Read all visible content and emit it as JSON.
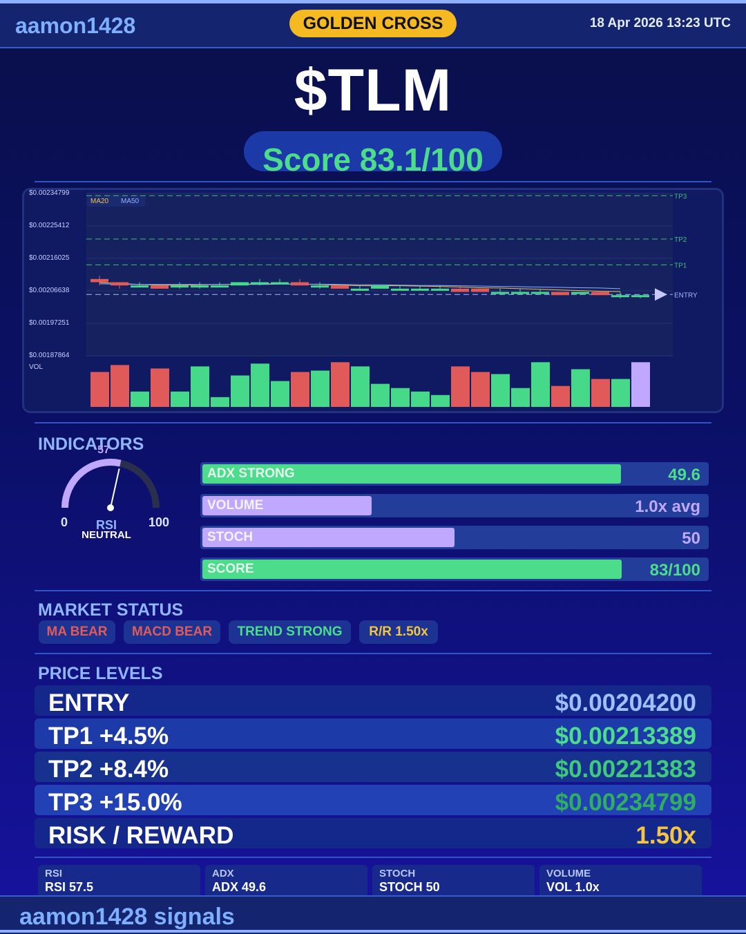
{
  "header": {
    "brand": "aamon1428",
    "signal_badge": "GOLDEN CROSS",
    "datetime": "18 Apr 2026  13:23 UTC"
  },
  "ticker": "$TLM",
  "score_text": "Score 83.1/100",
  "chart_data": {
    "type": "candlestick",
    "y_tick_labels": [
      "$0.00234799",
      "$0.00225412",
      "$0.00216025",
      "$0.00206638",
      "$0.00197251",
      "$0.00187864"
    ],
    "ylim": [
      0.00185,
      0.002355
    ],
    "legend": [
      "MA20",
      "MA50"
    ],
    "volume_label": "VOL",
    "candles": [
      {
        "o": 0.00209,
        "c": 0.00208,
        "h": 0.0021,
        "l": 0.00207,
        "v": 0.5
      },
      {
        "o": 0.00208,
        "c": 0.00207,
        "h": 0.00208,
        "l": 0.00206,
        "v": 0.6
      },
      {
        "o": 0.00207,
        "c": 0.00207,
        "h": 0.00208,
        "l": 0.00207,
        "v": 0.22
      },
      {
        "o": 0.00207,
        "c": 0.00206,
        "h": 0.00207,
        "l": 0.00206,
        "v": 0.55
      },
      {
        "o": 0.00207,
        "c": 0.00207,
        "h": 0.00208,
        "l": 0.00206,
        "v": 0.22
      },
      {
        "o": 0.00207,
        "c": 0.00207,
        "h": 0.00208,
        "l": 0.00206,
        "v": 0.58
      },
      {
        "o": 0.00207,
        "c": 0.00207,
        "h": 0.00208,
        "l": 0.00207,
        "v": 0.14
      },
      {
        "o": 0.00207,
        "c": 0.00208,
        "h": 0.00208,
        "l": 0.00207,
        "v": 0.45
      },
      {
        "o": 0.00208,
        "c": 0.00208,
        "h": 0.00209,
        "l": 0.00207,
        "v": 0.62
      },
      {
        "o": 0.00208,
        "c": 0.00208,
        "h": 0.00209,
        "l": 0.00208,
        "v": 0.37
      },
      {
        "o": 0.00208,
        "c": 0.00207,
        "h": 0.00209,
        "l": 0.00207,
        "v": 0.5
      },
      {
        "o": 0.00207,
        "c": 0.00207,
        "h": 0.00208,
        "l": 0.00206,
        "v": 0.52
      },
      {
        "o": 0.00207,
        "c": 0.00206,
        "h": 0.00207,
        "l": 0.00206,
        "v": 0.64
      },
      {
        "o": 0.00206,
        "c": 0.00206,
        "h": 0.00207,
        "l": 0.00206,
        "v": 0.58
      },
      {
        "o": 0.00206,
        "c": 0.00207,
        "h": 0.00207,
        "l": 0.00206,
        "v": 0.33
      },
      {
        "o": 0.00206,
        "c": 0.00206,
        "h": 0.00207,
        "l": 0.00206,
        "v": 0.27
      },
      {
        "o": 0.00206,
        "c": 0.00206,
        "h": 0.00207,
        "l": 0.00206,
        "v": 0.22
      },
      {
        "o": 0.00206,
        "c": 0.00206,
        "h": 0.00207,
        "l": 0.00206,
        "v": 0.17
      },
      {
        "o": 0.00206,
        "c": 0.00205,
        "h": 0.00207,
        "l": 0.00205,
        "v": 0.58
      },
      {
        "o": 0.00206,
        "c": 0.00205,
        "h": 0.00206,
        "l": 0.00205,
        "v": 0.5
      },
      {
        "o": 0.00205,
        "c": 0.00205,
        "h": 0.00206,
        "l": 0.00205,
        "v": 0.47
      },
      {
        "o": 0.00205,
        "c": 0.00205,
        "h": 0.00206,
        "l": 0.00205,
        "v": 0.27
      },
      {
        "o": 0.00205,
        "c": 0.00205,
        "h": 0.00206,
        "l": 0.00205,
        "v": 0.64
      },
      {
        "o": 0.00205,
        "c": 0.00204,
        "h": 0.00205,
        "l": 0.00204,
        "v": 0.3
      },
      {
        "o": 0.00205,
        "c": 0.00205,
        "h": 0.00205,
        "l": 0.00204,
        "v": 0.54
      },
      {
        "o": 0.00205,
        "c": 0.00204,
        "h": 0.00205,
        "l": 0.00204,
        "v": 0.4
      },
      {
        "o": 0.00204,
        "c": 0.00204,
        "h": 0.00205,
        "l": 0.00203,
        "v": 0.4
      },
      {
        "o": 0.00204,
        "c": 0.00204,
        "h": 0.00204,
        "l": 0.00203,
        "v": 0.64
      }
    ],
    "ma20": [
      0.002079,
      0.002076,
      0.002073,
      0.002071,
      0.002071,
      0.002072,
      0.002073,
      0.002074,
      0.002075,
      0.002075,
      0.002074,
      0.002073,
      0.002071,
      0.002069,
      0.002069,
      0.002069,
      0.002068,
      0.002067,
      0.002065,
      0.002063,
      0.002062,
      0.00206,
      0.002058,
      0.002056,
      0.002054,
      0.002052,
      0.002051
    ],
    "ma50": [
      0.002075,
      0.002074,
      0.002073,
      0.002073,
      0.002073,
      0.002073,
      0.002073,
      0.002073,
      0.002073,
      0.002074,
      0.002074,
      0.002074,
      0.002073,
      0.002072,
      0.002072,
      0.002071,
      0.00207,
      0.00207,
      0.002069,
      0.002068,
      0.002067,
      0.002066,
      0.002065,
      0.002064,
      0.002063,
      0.002062,
      0.00206
    ],
    "levels": [
      {
        "name": "TP3",
        "value": 0.00234799,
        "color": "#3fbf72"
      },
      {
        "name": "TP2",
        "value": 0.00221383,
        "color": "#3fbf72"
      },
      {
        "name": "TP1",
        "value": 0.00213389,
        "color": "#3fbf72"
      },
      {
        "name": "ENTRY",
        "value": 0.002042,
        "color": "#a9b8ff"
      }
    ],
    "colors": {
      "up": "#46d98a",
      "down": "#e05a5a",
      "last_volume": "#c0a8ff",
      "ma20": "#f2c14e",
      "ma50": "#8fb0ff"
    }
  },
  "indicators": {
    "title": "INDICATORS",
    "rsi": {
      "value": 57,
      "value_label": "57",
      "min_label": "0",
      "max_label": "100",
      "name": "RSI",
      "state": "NEUTRAL"
    },
    "bars": [
      {
        "label": "ADX  STRONG",
        "value_text": "49.6",
        "fill": 0.83,
        "color": "#4ddb8c",
        "value_color": "#4ddb8c"
      },
      {
        "label": "VOLUME",
        "value_text": "1.0x avg",
        "fill": 0.335,
        "color": "#c0a8ff",
        "value_color": "#c0a8ff"
      },
      {
        "label": "STOCH",
        "value_text": "50",
        "fill": 0.5,
        "color": "#c0a8ff",
        "value_color": "#c0a8ff"
      },
      {
        "label": "SCORE",
        "value_text": "83/100",
        "fill": 0.831,
        "color": "#4ddb8c",
        "value_color": "#4ddb8c"
      }
    ]
  },
  "market_status": {
    "title": "MARKET STATUS",
    "chips": [
      {
        "label": "MA BEAR",
        "color": "#e05a5a"
      },
      {
        "label": "MACD BEAR",
        "color": "#e05a5a"
      },
      {
        "label": "TREND STRONG",
        "color": "#4ddb8c"
      },
      {
        "label": "R/R  1.50x",
        "color": "#f5c542"
      }
    ]
  },
  "price_levels": {
    "title": "PRICE LEVELS",
    "rows": [
      {
        "name": "ENTRY",
        "value": "$0.00204200",
        "color": "#9fc0ff"
      },
      {
        "name": "TP1  +4.5%",
        "value": "$0.00213389",
        "color": "#4ddb8c"
      },
      {
        "name": "TP2  +8.4%",
        "value": "$0.00221383",
        "color": "#3fc97c"
      },
      {
        "name": "TP3  +15.0%",
        "value": "$0.00234799",
        "color": "#2fae63"
      },
      {
        "name": "RISK / REWARD",
        "value": "1.50x",
        "color": "#f5c542"
      }
    ]
  },
  "mini_stats": [
    {
      "key": "RSI",
      "value": "RSI 57.5"
    },
    {
      "key": "ADX",
      "value": "ADX 49.6"
    },
    {
      "key": "STOCH",
      "value": "STOCH 50"
    },
    {
      "key": "VOLUME",
      "value": "VOL 1.0x"
    }
  ],
  "footer": {
    "text": "aamon1428 signals"
  }
}
